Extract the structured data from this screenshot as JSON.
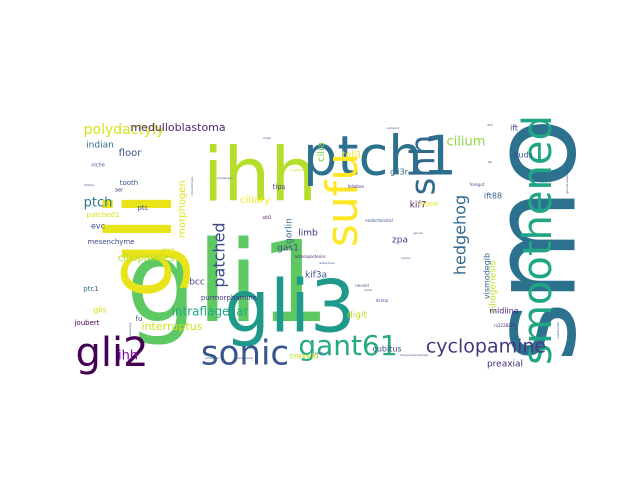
{
  "word_cloud": {
    "words": [
      {
        "text": "smo",
        "weight": 100,
        "color": "#2c718e",
        "rotate": true
      },
      {
        "text": "gli1",
        "weight": 96,
        "color": "#5ec962",
        "rotate": false
      },
      {
        "text": "gli",
        "weight": 80,
        "color": "#e8e419",
        "rotate": true
      },
      {
        "text": "gli3",
        "weight": 64,
        "color": "#1f9a8a",
        "rotate": false
      },
      {
        "text": "ihh",
        "weight": 62,
        "color": "#b5de2b",
        "rotate": false
      },
      {
        "text": "ptch1",
        "weight": 58,
        "color": "#2d708e",
        "rotate": false
      },
      {
        "text": "sufu",
        "weight": 46,
        "color": "#fde725",
        "rotate": true
      },
      {
        "text": "smoothened",
        "weight": 40,
        "color": "#21a685",
        "rotate": true
      },
      {
        "text": "shh",
        "weight": 36,
        "color": "#31688e",
        "rotate": true
      },
      {
        "text": "gli2",
        "weight": 34,
        "color": "#440154",
        "rotate": false
      },
      {
        "text": "sonic",
        "weight": 32,
        "color": "#39568c",
        "rotate": false
      },
      {
        "text": "gant61",
        "weight": 26,
        "color": "#25ab82",
        "rotate": false
      },
      {
        "text": "cyclopamine",
        "weight": 18,
        "color": "#453781",
        "rotate": false
      },
      {
        "text": "hedgehog",
        "weight": 16,
        "color": "#31688e",
        "rotate": true
      },
      {
        "text": "patched",
        "weight": 16,
        "color": "#3e4989",
        "rotate": true
      },
      {
        "text": "polydactyly",
        "weight": 14,
        "color": "#d8e219",
        "rotate": false
      },
      {
        "text": "cilium",
        "weight": 12,
        "color": "#90d743",
        "rotate": false
      },
      {
        "text": "medulloblastoma",
        "weight": 11,
        "color": "#482878",
        "rotate": false
      },
      {
        "text": "ciliogenesis",
        "weight": 9,
        "color": "#c2df23",
        "rotate": true
      },
      {
        "text": "ptch",
        "weight": 12,
        "color": "#2a788e",
        "rotate": false
      },
      {
        "text": "ihh",
        "weight": 12,
        "color": "#7e03a8",
        "rotate": false
      },
      {
        "text": "interruptus",
        "weight": 10,
        "color": "#d0e11c",
        "rotate": false
      },
      {
        "text": "intraflagellar",
        "weight": 11,
        "color": "#22a884",
        "rotate": false
      },
      {
        "text": "ciliopathies",
        "weight": 10,
        "color": "#b5de2b",
        "rotate": false
      },
      {
        "text": "morphogen",
        "weight": 9,
        "color": "#e0e41a",
        "rotate": true
      },
      {
        "text": "ciliary",
        "weight": 10,
        "color": "#fde725",
        "rotate": false
      },
      {
        "text": "cilia",
        "weight": 10,
        "color": "#7ad151",
        "rotate": true
      },
      {
        "text": "gorlin",
        "weight": 9,
        "color": "#31688e",
        "rotate": true
      },
      {
        "text": "floor",
        "weight": 10,
        "color": "#3b528b",
        "rotate": false
      },
      {
        "text": "indian",
        "weight": 9,
        "color": "#2e6e8e",
        "rotate": false
      },
      {
        "text": "limb",
        "weight": 9,
        "color": "#472d7b",
        "rotate": false
      },
      {
        "text": "gas1",
        "weight": 9,
        "color": "#404688",
        "rotate": false
      },
      {
        "text": "bcc",
        "weight": 9,
        "color": "#3e4989",
        "rotate": false
      },
      {
        "text": "kif3a",
        "weight": 9,
        "color": "#3b528b",
        "rotate": false
      },
      {
        "text": "kif7",
        "weight": 9,
        "color": "#481f70",
        "rotate": false
      },
      {
        "text": "zpa",
        "weight": 9,
        "color": "#3e4989",
        "rotate": false
      },
      {
        "text": "digit",
        "weight": 9,
        "color": "#bddf26",
        "rotate": false
      },
      {
        "text": "gli3r",
        "weight": 8,
        "color": "#31688e",
        "rotate": false
      },
      {
        "text": "tgli1",
        "weight": 9,
        "color": "#fde725",
        "rotate": false
      },
      {
        "text": "ift88",
        "weight": 8,
        "color": "#35608d",
        "rotate": false
      },
      {
        "text": "ift",
        "weight": 8,
        "color": "#3f4a8a",
        "rotate": false
      },
      {
        "text": "buds",
        "weight": 8,
        "color": "#3b528b",
        "rotate": false
      },
      {
        "text": "vismodegib",
        "weight": 8,
        "color": "#31688e",
        "rotate": true
      },
      {
        "text": "midline",
        "weight": 8,
        "color": "#482475",
        "rotate": false
      },
      {
        "text": "preaxial",
        "weight": 9,
        "color": "#472d7b",
        "rotate": false
      },
      {
        "text": "cubitus",
        "weight": 8,
        "color": "#3e4989",
        "rotate": false
      },
      {
        "text": "creveld",
        "weight": 8,
        "color": "#c8e020",
        "rotate": false
      },
      {
        "text": "purmorphamine",
        "weight": 7,
        "color": "#443983",
        "rotate": false
      },
      {
        "text": "mesenchyme",
        "weight": 7,
        "color": "#3e4989",
        "rotate": false
      },
      {
        "text": "patched1",
        "weight": 7,
        "color": "#d8e219",
        "rotate": false
      },
      {
        "text": "evc",
        "weight": 8,
        "color": "#3b528b",
        "rotate": false
      },
      {
        "text": "glis",
        "weight": 8,
        "color": "#d8e219",
        "rotate": false
      },
      {
        "text": "joubert",
        "weight": 7,
        "color": "#440154",
        "rotate": false
      },
      {
        "text": "tooth",
        "weight": 7,
        "color": "#3b528b",
        "rotate": false
      },
      {
        "text": "tips",
        "weight": 7,
        "color": "#433e85",
        "rotate": false
      },
      {
        "text": "ptc",
        "weight": 7,
        "color": "#3b528b",
        "rotate": false
      },
      {
        "text": "ptc1",
        "weight": 7,
        "color": "#2c728e",
        "rotate": false
      },
      {
        "text": "fu",
        "weight": 7,
        "color": "#3b528b",
        "rotate": false
      },
      {
        "text": "lingual",
        "weight": 6,
        "color": "#e2e418",
        "rotate": false
      },
      {
        "text": "niche",
        "weight": 5,
        "color": "#3b528b",
        "rotate": false
      },
      {
        "text": "aer",
        "weight": 5,
        "color": "#482878",
        "rotate": false
      },
      {
        "text": "ofd1",
        "weight": 4,
        "color": "#440154",
        "rotate": false
      },
      {
        "text": "rs2228226",
        "weight": 4,
        "color": "#482475",
        "rotate": false
      },
      {
        "text": "dental",
        "weight": 4,
        "color": "#3b528b",
        "rotate": false
      },
      {
        "text": "nevoid",
        "weight": 4,
        "color": "#3b528b",
        "rotate": false
      },
      {
        "text": "foliation",
        "weight": 4,
        "color": "#481f70",
        "rotate": false
      },
      {
        "text": "endochondral",
        "weight": 4,
        "color": "#3b528b",
        "rotate": false
      },
      {
        "text": "anteroposterior",
        "weight": 4,
        "color": "#481f70",
        "rotate": false
      },
      {
        "text": "foregut",
        "weight": 4,
        "color": "#3b528b",
        "rotate": false
      },
      {
        "text": "fungiform",
        "weight": 3,
        "color": "#c8e020",
        "rotate": false
      },
      {
        "text": "autopod",
        "weight": 3,
        "color": "#3b528b",
        "rotate": false
      },
      {
        "text": "phalanges",
        "weight": 3,
        "color": "#3b528b",
        "rotate": false
      },
      {
        "text": "ridge",
        "weight": 3,
        "color": "#3b528b",
        "rotate": false
      },
      {
        "text": "follicle",
        "weight": 3,
        "color": "#3b528b",
        "rotate": false
      },
      {
        "text": "explants",
        "weight": 3,
        "color": "#c2df23",
        "rotate": false
      },
      {
        "text": "cerebellar",
        "weight": 3,
        "color": "#3b528b",
        "rotate": false
      },
      {
        "text": "craniofacial",
        "weight": 3,
        "color": "#3b528b",
        "rotate": false
      },
      {
        "text": "holoprosencephaly",
        "weight": 3,
        "color": "#3b528b",
        "rotate": false
      },
      {
        "text": "papillae",
        "weight": 3,
        "color": "#3b528b",
        "rotate": false
      },
      {
        "text": "extra-toes",
        "weight": 3,
        "color": "#3b528b",
        "rotate": false
      },
      {
        "text": "incisor",
        "weight": 3,
        "color": "#3b528b",
        "rotate": false
      },
      {
        "text": "plate",
        "weight": 3,
        "color": "#3b528b",
        "rotate": false
      },
      {
        "text": "fgf",
        "weight": 3,
        "color": "#3b528b",
        "rotate": false
      },
      {
        "text": "dhh",
        "weight": 3,
        "color": "#3b528b",
        "rotate": false
      },
      {
        "text": "apical",
        "weight": 3,
        "color": "#3b528b",
        "rotate": false
      },
      {
        "text": "polarizing",
        "weight": 3,
        "color": "#3b528b",
        "rotate": true
      },
      {
        "text": "chondrocyte",
        "weight": 3,
        "color": "#3b528b",
        "rotate": true
      },
      {
        "text": "ossification",
        "weight": 3,
        "color": "#3b528b",
        "rotate": true
      },
      {
        "text": "glioma-associated",
        "weight": 3,
        "color": "#3b528b",
        "rotate": true
      }
    ]
  }
}
